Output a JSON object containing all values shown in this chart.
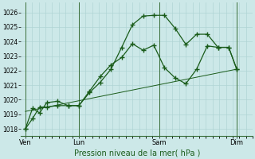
{
  "xlabel": "Pression niveau de la mer( hPa )",
  "ylim": [
    1017.5,
    1026.7
  ],
  "yticks": [
    1018,
    1019,
    1020,
    1021,
    1022,
    1023,
    1024,
    1025,
    1026
  ],
  "bg_color": "#cce8e8",
  "grid_color": "#b0d4d4",
  "line_color": "#1a5c1a",
  "day_labels": [
    "Ven",
    "Lun",
    "Sam",
    "Dim"
  ],
  "day_positions": [
    0,
    60,
    150,
    237
  ],
  "vline_color": "#3a6e3a",
  "line1_x": [
    0,
    8,
    16,
    24,
    36,
    48,
    60,
    72,
    84,
    96,
    108,
    120,
    132,
    144,
    156,
    168,
    180,
    192,
    204,
    216,
    228,
    237
  ],
  "line1_y": [
    1018.0,
    1018.7,
    1019.5,
    1019.5,
    1019.6,
    1019.6,
    1019.6,
    1020.5,
    1021.2,
    1022.1,
    1023.6,
    1025.15,
    1025.75,
    1025.8,
    1025.8,
    1024.9,
    1023.8,
    1024.5,
    1024.5,
    1023.6,
    1023.6,
    1022.1
  ],
  "line2_x": [
    0,
    8,
    16,
    24,
    36,
    48,
    60,
    72,
    84,
    96,
    108,
    120,
    132,
    144,
    156,
    168,
    180,
    192,
    204,
    216,
    228,
    237
  ],
  "line2_y": [
    1018.0,
    1019.4,
    1019.1,
    1019.8,
    1019.9,
    1019.6,
    1019.6,
    1020.6,
    1021.6,
    1022.4,
    1022.9,
    1023.85,
    1023.4,
    1023.75,
    1022.2,
    1021.5,
    1021.1,
    1022.1,
    1023.7,
    1023.6,
    1023.6,
    1022.1
  ],
  "line3_x": [
    0,
    237
  ],
  "line3_y": [
    1019.2,
    1022.1
  ],
  "total_x": 255,
  "xlim": [
    -5,
    255
  ]
}
